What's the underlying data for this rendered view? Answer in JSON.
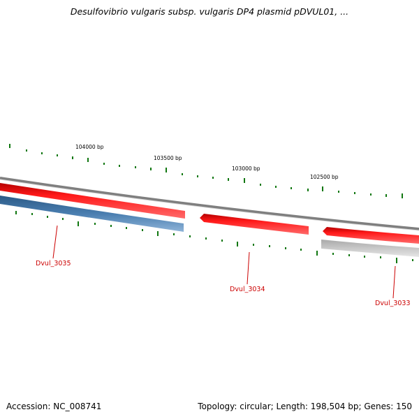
{
  "title": "Desulfovibrio vulgaris subsp. vulgaris DP4 plasmid pDVUL01, ...",
  "ruler": {
    "ticks": [
      {
        "label": "104000 bp"
      },
      {
        "label": "103500 bp"
      },
      {
        "label": "103000 bp"
      },
      {
        "label": "102500 bp"
      }
    ]
  },
  "genes": [
    {
      "name": "Dvul_3035",
      "strand": "reverse"
    },
    {
      "name": "Dvul_3034",
      "strand": "forward"
    },
    {
      "name": "Dvul_3033",
      "strand": "forward"
    }
  ],
  "colors": {
    "forward_gene": "#ee1111",
    "reverse_gene": "#4a7eb0",
    "gray_gene": "#c4c4c4",
    "backbone": "#808080",
    "tick_mark": "#117711",
    "gene_label": "#cc0000"
  },
  "footer": {
    "accession": "Accession: NC_008741",
    "stats": "Topology: circular; Length: 198,504 bp; Genes: 150"
  }
}
